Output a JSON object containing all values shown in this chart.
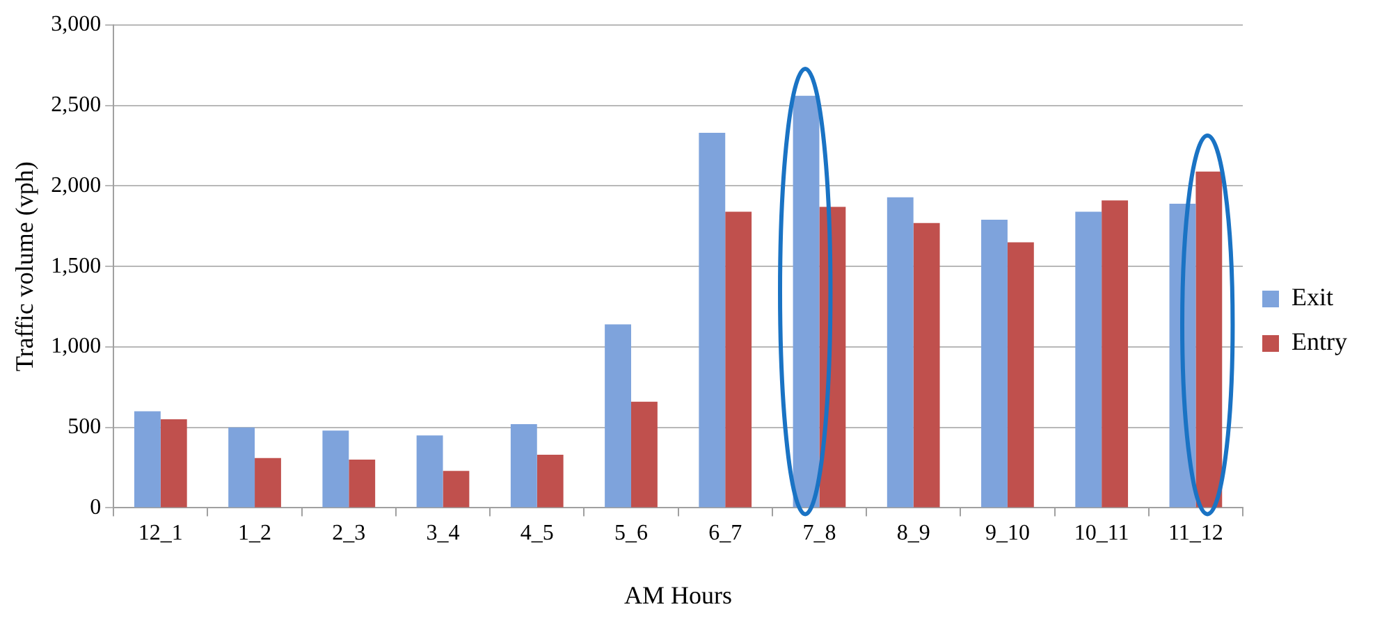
{
  "chart_data": {
    "type": "bar",
    "xlabel": "AM Hours",
    "ylabel": "Traffic volume (vph)",
    "categories": [
      "12_1",
      "1_2",
      "2_3",
      "3_4",
      "4_5",
      "5_6",
      "6_7",
      "7_8",
      "8_9",
      "9_10",
      "10_11",
      "11_12"
    ],
    "series": [
      {
        "name": "Exit",
        "color": "#7ea3dc",
        "values": [
          600,
          500,
          480,
          450,
          520,
          1140,
          2330,
          2560,
          1930,
          1790,
          1840,
          1890
        ]
      },
      {
        "name": "Entry",
        "color": "#c0504d",
        "values": [
          550,
          310,
          300,
          230,
          330,
          660,
          1840,
          1870,
          1770,
          1650,
          1910,
          2090
        ]
      }
    ],
    "ylim": [
      0,
      3000
    ],
    "yticks": [
      {
        "value": 0,
        "label": "0"
      },
      {
        "value": 500,
        "label": "500"
      },
      {
        "value": 1000,
        "label": "1,000"
      },
      {
        "value": 1500,
        "label": "1,500"
      },
      {
        "value": 2000,
        "label": "2,000"
      },
      {
        "value": 2500,
        "label": "2,500"
      },
      {
        "value": 3000,
        "label": "3,000"
      }
    ],
    "grid": "y",
    "legend": "right"
  }
}
